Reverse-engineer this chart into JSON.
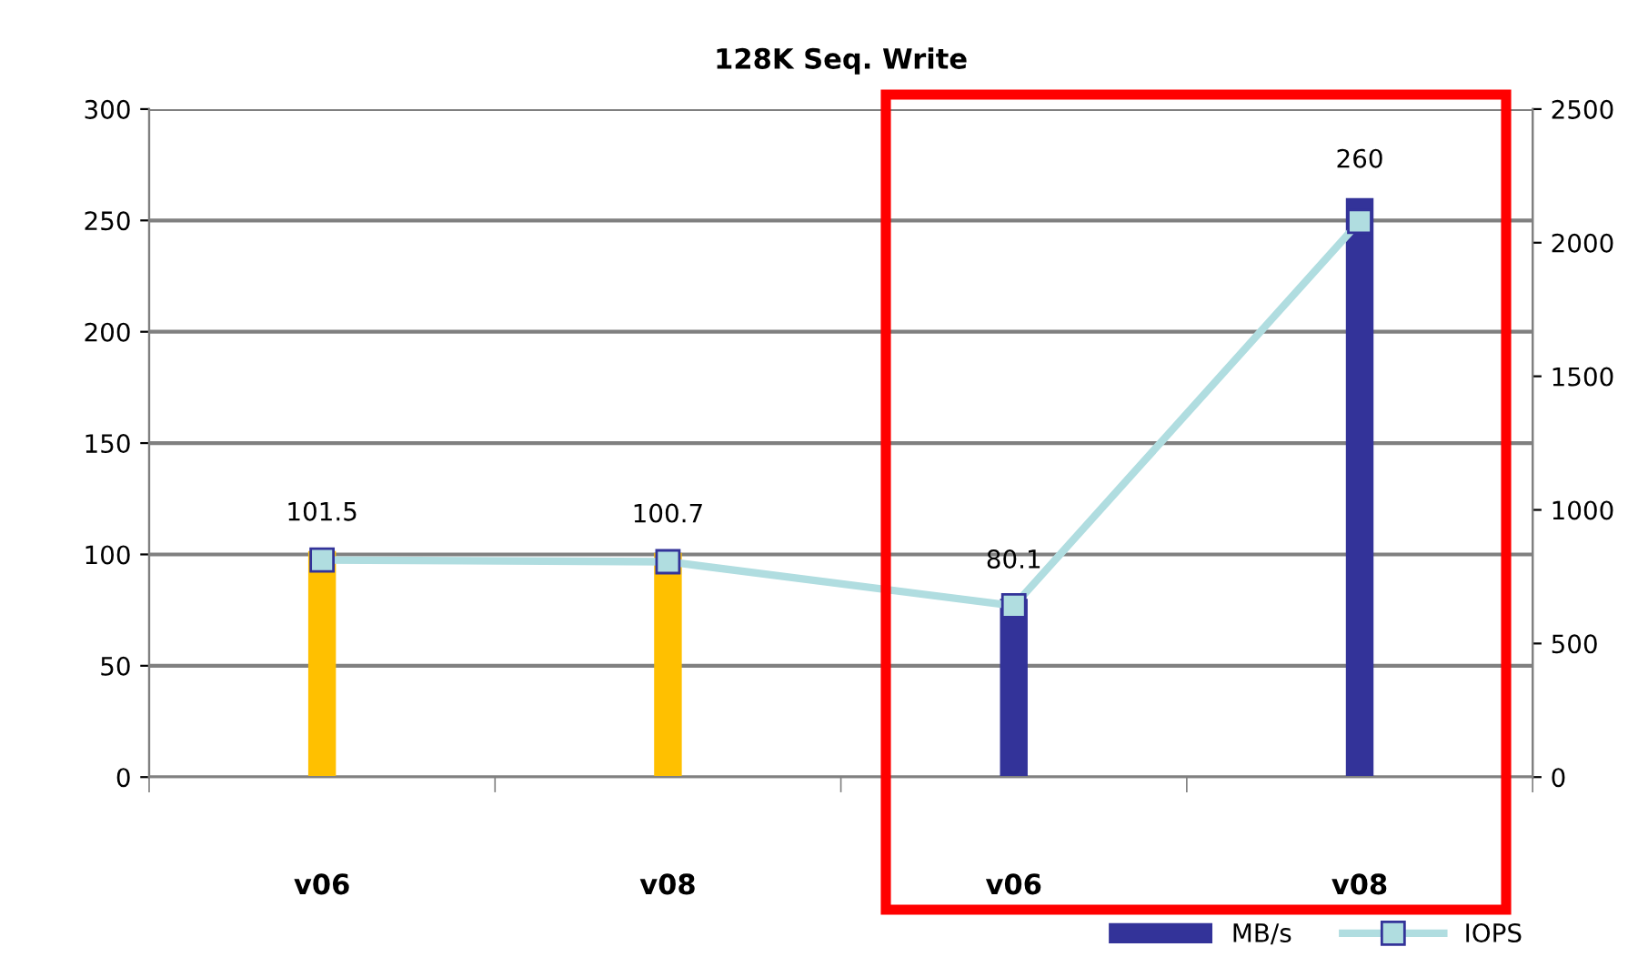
{
  "chart_data": {
    "type": "bar",
    "title": "128K Seq. Write",
    "categories": [
      "v06",
      "v08",
      "v06",
      "v08"
    ],
    "series": [
      {
        "name": "MB/s",
        "color": "#333399",
        "colors": [
          "#ffc000",
          "#ffc000",
          "#333399",
          "#333399"
        ],
        "values": [
          101.5,
          100.7,
          80.1,
          260
        ],
        "value_labels": [
          "101.5",
          "100.7",
          "80.1",
          "260"
        ]
      },
      {
        "name": "IOPS",
        "type": "line",
        "axis": "y2",
        "color": "#b0dde0",
        "marker": "square",
        "values": [
          812,
          806,
          641,
          2080
        ]
      }
    ],
    "ylim": [
      0,
      300
    ],
    "yticks": [
      0,
      50,
      100,
      150,
      200,
      250,
      300
    ],
    "y2lim": [
      0,
      2500
    ],
    "y2ticks": [
      0,
      500,
      1000,
      1500,
      2000,
      2500
    ],
    "grid": "y",
    "legend": "bottom right"
  }
}
